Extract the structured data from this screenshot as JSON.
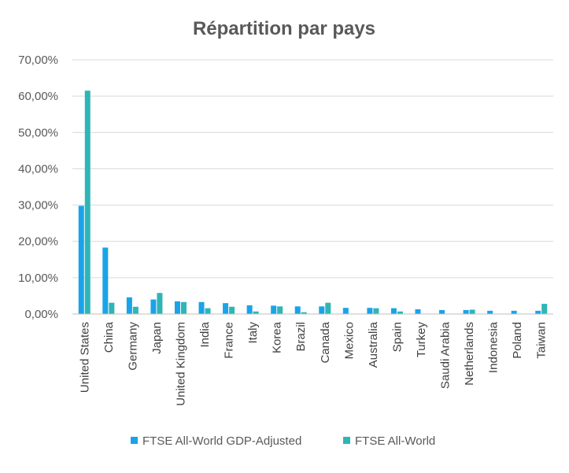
{
  "chart_data": {
    "type": "bar",
    "title": "Répartition par pays",
    "xlabel": "",
    "ylabel": "",
    "ylim": [
      0,
      70
    ],
    "y_ticks": [
      "0,00%",
      "10,00%",
      "20,00%",
      "30,00%",
      "40,00%",
      "50,00%",
      "60,00%",
      "70,00%"
    ],
    "y_tick_values": [
      0,
      10,
      20,
      30,
      40,
      50,
      60,
      70
    ],
    "grid": true,
    "legend_position": "bottom",
    "categories": [
      "United States",
      "China",
      "Germany",
      "Japan",
      "United Kingdom",
      "India",
      "France",
      "Italy",
      "Korea",
      "Brazil",
      "Canada",
      "Mexico",
      "Australia",
      "Spain",
      "Turkey",
      "Saudi Arabia",
      "Netherlands",
      "Indonesia",
      "Poland",
      "Taiwan"
    ],
    "series": [
      {
        "name": "FTSE All-World GDP-Adjusted",
        "color": "#1aa3e8",
        "values": [
          29.8,
          18.3,
          4.6,
          4.0,
          3.5,
          3.3,
          3.0,
          2.4,
          2.3,
          2.1,
          2.1,
          1.7,
          1.7,
          1.6,
          1.3,
          1.1,
          1.1,
          0.9,
          0.9,
          0.9
        ]
      },
      {
        "name": "FTSE All-World",
        "color": "#2fb5b5",
        "values": [
          61.5,
          3.1,
          2.0,
          5.8,
          3.3,
          1.6,
          2.0,
          0.7,
          2.1,
          0.5,
          3.1,
          0.0,
          1.6,
          0.7,
          0.0,
          0.0,
          1.2,
          0.0,
          0.0,
          2.8
        ]
      }
    ]
  }
}
